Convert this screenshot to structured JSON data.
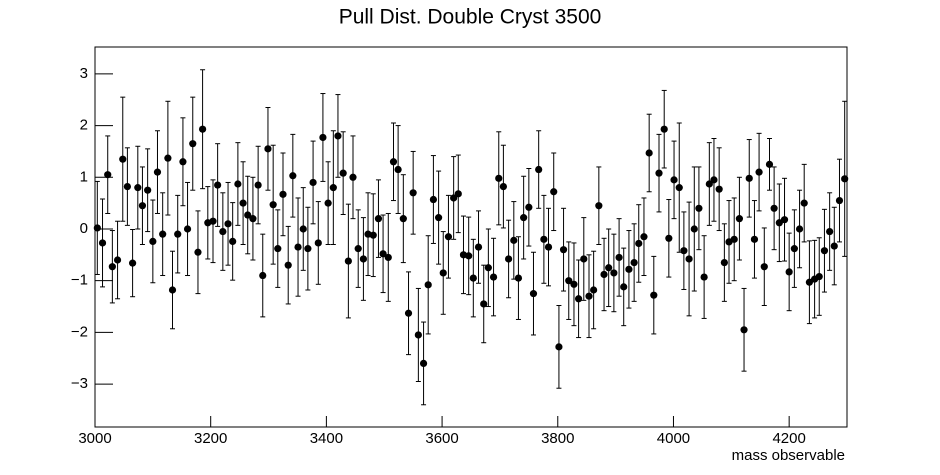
{
  "chart_data": {
    "type": "errorbar",
    "title": "Pull Dist. Double Cryst 3500",
    "xlabel": "mass observable",
    "color": "#000000",
    "x": [
      3004,
      3013,
      3022,
      3030,
      3039,
      3048,
      3056,
      3065,
      3074,
      3082,
      3091,
      3100,
      3108,
      3117,
      3126,
      3134,
      3143,
      3152,
      3160,
      3169,
      3178,
      3186,
      3195,
      3204,
      3212,
      3221,
      3230,
      3238,
      3247,
      3256,
      3264,
      3273,
      3282,
      3290,
      3299,
      3308,
      3316,
      3325,
      3334,
      3342,
      3351,
      3360,
      3368,
      3377,
      3386,
      3394,
      3403,
      3412,
      3420,
      3429,
      3438,
      3446,
      3455,
      3464,
      3472,
      3481,
      3490,
      3498,
      3507,
      3516,
      3524,
      3533,
      3542,
      3550,
      3559,
      3568,
      3576,
      3585,
      3594,
      3602,
      3611,
      3620,
      3628,
      3637,
      3646,
      3654,
      3663,
      3672,
      3680,
      3689,
      3698,
      3706,
      3715,
      3724,
      3732,
      3741,
      3750,
      3758,
      3767,
      3776,
      3784,
      3793,
      3802,
      3810,
      3819,
      3828,
      3836,
      3845,
      3854,
      3862,
      3871,
      3880,
      3888,
      3897,
      3906,
      3914,
      3923,
      3932,
      3940,
      3949,
      3958,
      3966,
      3975,
      3984,
      3992,
      4001,
      4010,
      4018,
      4027,
      4036,
      4044,
      4053,
      4062,
      4070,
      4079,
      4088,
      4096,
      4105,
      4114,
      4122,
      4131,
      4140,
      4148,
      4157,
      4166,
      4174,
      4183,
      4192,
      4200,
      4209,
      4218,
      4226,
      4235,
      4244,
      4252,
      4261,
      4270,
      4278,
      4287,
      4296
    ],
    "values": [
      0.02,
      -0.27,
      1.05,
      -0.73,
      -0.6,
      1.35,
      0.82,
      -0.66,
      0.8,
      0.45,
      0.75,
      -0.24,
      1.1,
      -0.1,
      1.37,
      -1.18,
      -0.1,
      1.3,
      0.0,
      1.65,
      -0.45,
      1.93,
      0.12,
      0.15,
      0.85,
      -0.05,
      0.1,
      -0.24,
      0.87,
      0.5,
      0.27,
      0.2,
      0.85,
      -0.9,
      1.55,
      0.47,
      -0.38,
      0.67,
      -0.7,
      1.03,
      -0.35,
      0.0,
      -0.38,
      0.9,
      -0.27,
      1.77,
      0.5,
      0.8,
      1.8,
      1.08,
      -0.62,
      1.0,
      -0.38,
      -0.58,
      -0.1,
      -0.12,
      0.2,
      -0.48,
      -0.55,
      1.3,
      1.15,
      0.2,
      -1.63,
      0.7,
      -2.05,
      -2.6,
      -1.08,
      0.57,
      0.22,
      -0.85,
      -0.15,
      0.6,
      0.68,
      -0.5,
      -0.52,
      -0.95,
      -0.35,
      -1.45,
      -0.75,
      -0.93,
      0.98,
      0.82,
      -0.58,
      -0.22,
      -0.95,
      0.22,
      0.42,
      -1.25,
      1.15,
      -0.2,
      -0.35,
      0.72,
      -2.28,
      -0.4,
      -1.0,
      -1.07,
      -1.35,
      -0.58,
      -1.3,
      -1.18,
      0.45,
      -0.88,
      -0.75,
      -0.85,
      -0.55,
      -1.12,
      -0.78,
      -0.65,
      -0.28,
      -0.15,
      1.47,
      -1.28,
      1.08,
      1.93,
      -0.18,
      0.95,
      0.8,
      -0.42,
      -0.58,
      0.0,
      0.4,
      -0.93,
      0.87,
      0.95,
      0.77,
      -0.65,
      -0.25,
      -0.2,
      0.2,
      -1.95,
      0.98,
      -0.2,
      1.1,
      -0.73,
      1.25,
      0.4,
      0.12,
      0.18,
      -0.83,
      -0.38,
      0.0,
      0.5,
      -1.03,
      -0.97,
      -0.92,
      -0.42,
      -0.05,
      -0.33,
      0.55,
      0.97
    ],
    "errors": [
      0.9,
      0.85,
      0.75,
      0.7,
      0.75,
      1.2,
      0.75,
      0.65,
      0.8,
      0.75,
      0.8,
      0.8,
      0.8,
      0.8,
      1.1,
      0.75,
      0.75,
      0.85,
      0.9,
      0.9,
      0.8,
      1.15,
      0.7,
      0.8,
      0.8,
      0.75,
      0.8,
      0.75,
      0.8,
      0.8,
      0.75,
      0.8,
      0.75,
      0.8,
      0.8,
      1.15,
      0.75,
      0.8,
      0.75,
      0.8,
      0.95,
      0.8,
      0.8,
      0.8,
      0.8,
      0.85,
      0.8,
      1.1,
      0.8,
      0.8,
      1.1,
      0.8,
      0.75,
      0.8,
      0.8,
      0.8,
      0.75,
      0.75,
      0.85,
      0.75,
      0.85,
      0.85,
      0.8,
      0.8,
      0.9,
      0.8,
      0.95,
      0.85,
      0.9,
      0.8,
      0.8,
      0.8,
      0.75,
      0.75,
      0.75,
      0.75,
      0.7,
      0.75,
      0.75,
      0.75,
      0.9,
      0.8,
      0.75,
      0.75,
      0.8,
      0.8,
      0.75,
      0.8,
      0.75,
      0.85,
      0.75,
      0.75,
      0.8,
      0.8,
      0.75,
      0.8,
      0.75,
      0.8,
      0.8,
      0.75,
      0.75,
      0.7,
      0.75,
      0.75,
      0.75,
      0.75,
      0.75,
      0.75,
      0.75,
      0.75,
      0.75,
      0.75,
      0.75,
      0.75,
      0.75,
      0.75,
      1.25,
      0.75,
      1.1,
      1.2,
      0.8,
      0.8,
      0.8,
      0.8,
      0.8,
      0.75,
      0.8,
      0.8,
      0.8,
      0.8,
      0.75,
      0.75,
      0.75,
      0.75,
      0.5,
      0.8,
      0.75,
      0.8,
      0.75,
      0.75,
      0.75,
      0.75,
      0.8,
      0.75,
      0.75,
      0.8,
      0.75,
      0.75,
      0.8,
      1.5
    ],
    "xlim": [
      3000,
      4300
    ],
    "ylim": [
      -3.83,
      3.52
    ],
    "xticks": [
      3000,
      3200,
      3400,
      3600,
      3800,
      4000,
      4200
    ],
    "yticks": [
      {
        "value": -3,
        "label": "−3"
      },
      {
        "value": -2,
        "label": "−2"
      },
      {
        "value": -1,
        "label": "−1"
      },
      0,
      1,
      2,
      3
    ]
  }
}
